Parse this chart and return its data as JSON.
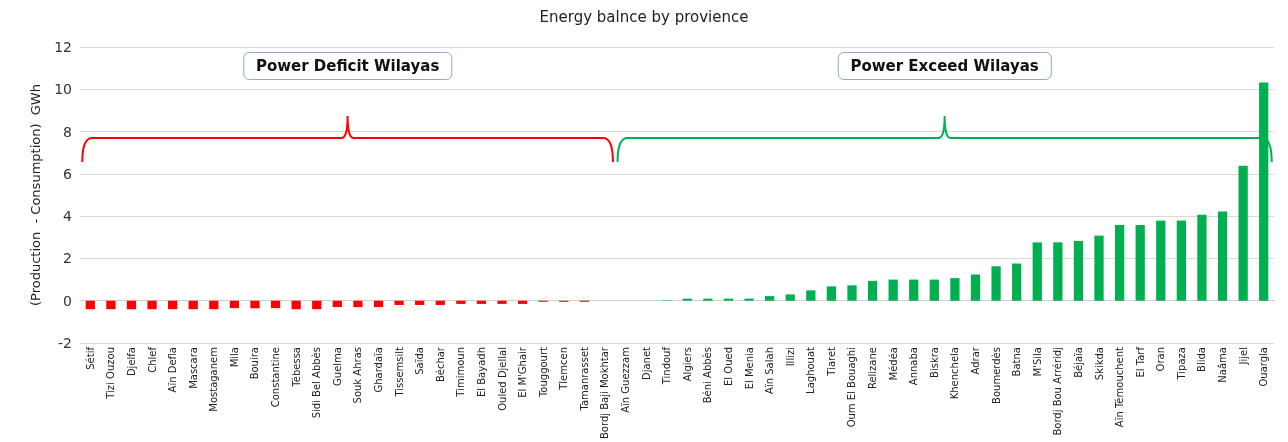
{
  "chart_data": {
    "type": "bar",
    "title": "Energy balnce by provience",
    "ylabel": "(Production  - Consumption)  GWh",
    "categories": [
      "Sétif",
      "Tizi Ouzou",
      "Djelfa",
      "Chlef",
      "Aïn Defla",
      "Mascara",
      "Mostaganem",
      "Mila",
      "Bouira",
      "Constantine",
      "Tébessa",
      "Sidi Bel Abbès",
      "Guelma",
      "Souk Ahras",
      "Ghardaïa",
      "Tissemsilt",
      "Saïda",
      "Béchar",
      "Timimoun",
      "El Bayadh",
      "Ouled Djellal",
      "El M'Ghair",
      "Touggourt",
      "Tlemcen",
      "Tamanrasset",
      "Bordj Baji Mokhtar",
      "Aïn Guezzam",
      "Djanet",
      "Tindouf",
      "Algiers",
      "Béni Abbès",
      "El Oued",
      "El Menia",
      "Aïn Salah",
      "Illizi",
      "Laghouat",
      "Tiaret",
      "Oum El Bouaghi",
      "Relizane",
      "Médéa",
      "Annaba",
      "Biskra",
      "Khenchela",
      "Adrar",
      "Boumerdès",
      "Batna",
      "M'Sila",
      "Bordj Bou Arréridj",
      "Béjaïa",
      "Skikda",
      "Aïn Témouchent",
      "El Tarf",
      "Oran",
      "Tipaza",
      "Blida",
      "Naâma",
      "Jijel",
      "Ouargla"
    ],
    "values": [
      -0.4,
      -0.4,
      -0.4,
      -0.4,
      -0.4,
      -0.4,
      -0.4,
      -0.35,
      -0.35,
      -0.35,
      -0.4,
      -0.4,
      -0.3,
      -0.3,
      -0.3,
      -0.2,
      -0.2,
      -0.2,
      -0.15,
      -0.15,
      -0.15,
      -0.15,
      -0.05,
      -0.05,
      -0.05,
      null,
      null,
      0,
      0.02,
      0.1,
      0.1,
      0.1,
      0.1,
      0.22,
      0.3,
      0.49,
      0.68,
      0.73,
      0.94,
      1.0,
      1.0,
      1.0,
      1.07,
      1.24,
      1.63,
      1.76,
      2.76,
      2.76,
      2.83,
      3.08,
      3.58,
      3.58,
      3.79,
      3.79,
      4.07,
      4.22,
      6.38,
      10.32
    ],
    "colors": [
      "#ff0000",
      "#ff0000",
      "#ff0000",
      "#ff0000",
      "#ff0000",
      "#ff0000",
      "#ff0000",
      "#ff0000",
      "#ff0000",
      "#ff0000",
      "#ff0000",
      "#ff0000",
      "#ff0000",
      "#ff0000",
      "#ff0000",
      "#ff0000",
      "#ff0000",
      "#ff0000",
      "#ff0000",
      "#ff0000",
      "#ff0000",
      "#ff0000",
      "#ff0000",
      "#ff0000",
      "#ff0000",
      "#ff0000",
      "#00b050",
      "#00b050",
      "#00b050",
      "#00b050",
      "#00b050",
      "#00b050",
      "#00b050",
      "#00b050",
      "#00b050",
      "#00b050",
      "#00b050",
      "#00b050",
      "#00b050",
      "#00b050",
      "#00b050",
      "#00b050",
      "#00b050",
      "#00b050",
      "#00b050",
      "#00b050",
      "#00b050",
      "#00b050",
      "#00b050",
      "#00b050",
      "#00b050",
      "#00b050",
      "#00b050",
      "#00b050",
      "#00b050",
      "#00b050",
      "#00b050",
      "#00b050"
    ],
    "ylim": [
      -2,
      12
    ],
    "yticks": [
      -2,
      0,
      2,
      4,
      6,
      8,
      10,
      12
    ],
    "grid": "y",
    "annotations": [
      "Power Deficit Wilayas",
      "Power Exceed Wilayas"
    ]
  }
}
